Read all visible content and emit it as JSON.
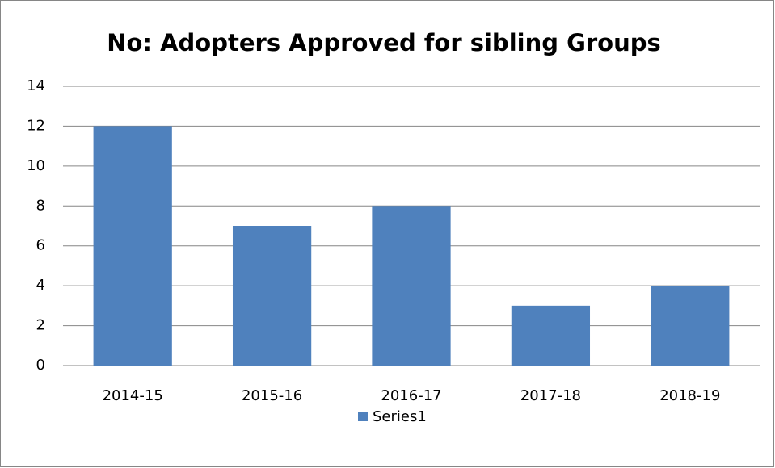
{
  "chart_data": {
    "type": "bar",
    "title": "No: Adopters Approved for sibling Groups",
    "categories": [
      "2014-15",
      "2015-16",
      "2016-17",
      "2017-18",
      "2018-19"
    ],
    "series": [
      {
        "name": "Series1",
        "color": "#4f81bd",
        "values": [
          12,
          7,
          8,
          3,
          4
        ]
      }
    ],
    "ylim": [
      0,
      14
    ],
    "yticks": [
      0,
      2,
      4,
      6,
      8,
      10,
      12,
      14
    ],
    "grid": true,
    "legend": "bottom"
  }
}
